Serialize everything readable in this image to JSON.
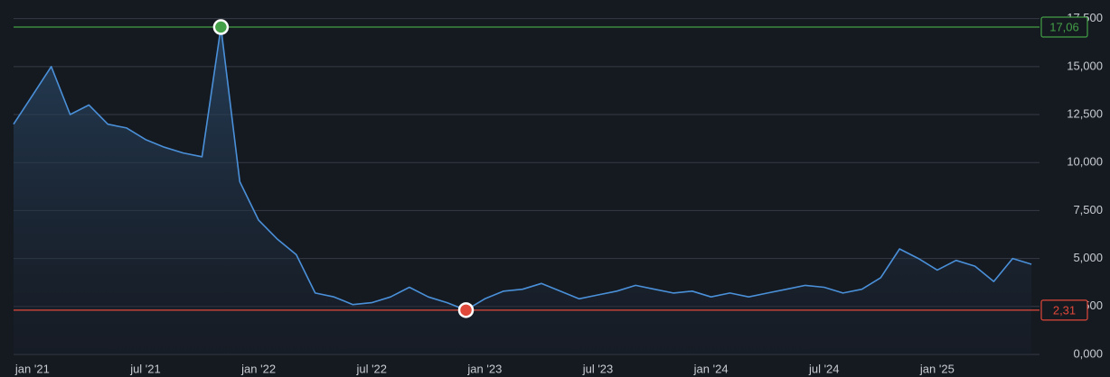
{
  "chart_data": {
    "type": "line",
    "x": [
      "2020-12",
      "2021-01",
      "2021-02",
      "2021-03",
      "2021-04",
      "2021-05",
      "2021-06",
      "2021-07",
      "2021-08",
      "2021-09",
      "2021-10",
      "2021-11",
      "2021-12",
      "2022-01",
      "2022-02",
      "2022-03",
      "2022-04",
      "2022-05",
      "2022-06",
      "2022-07",
      "2022-08",
      "2022-09",
      "2022-10",
      "2022-11",
      "2022-12",
      "2023-01",
      "2023-02",
      "2023-03",
      "2023-04",
      "2023-05",
      "2023-06",
      "2023-07",
      "2023-08",
      "2023-09",
      "2023-10",
      "2023-11",
      "2023-12",
      "2024-01",
      "2024-02",
      "2024-03",
      "2024-04",
      "2024-05",
      "2024-06",
      "2024-07",
      "2024-08",
      "2024-09",
      "2024-10",
      "2024-11",
      "2024-12",
      "2025-01",
      "2025-02",
      "2025-03",
      "2025-04",
      "2025-05",
      "2025-06"
    ],
    "series": [
      {
        "color": "#4a90d9",
        "values": [
          12.0,
          13.5,
          15.0,
          12.5,
          13.0,
          12.0,
          11.8,
          11.2,
          10.8,
          10.5,
          10.3,
          17.06,
          9.0,
          7.0,
          6.0,
          5.2,
          3.2,
          3.0,
          2.6,
          2.7,
          3.0,
          3.5,
          3.0,
          2.7,
          2.31,
          2.9,
          3.3,
          3.4,
          3.7,
          3.3,
          2.9,
          3.1,
          3.3,
          3.6,
          3.4,
          3.2,
          3.3,
          3.0,
          3.2,
          3.0,
          3.2,
          3.4,
          3.6,
          3.5,
          3.2,
          3.4,
          4.0,
          5.5,
          5.0,
          4.4,
          4.9,
          4.6,
          3.8,
          5.0,
          4.7
        ]
      }
    ],
    "xlim": [
      "2020-12",
      "2025-07"
    ],
    "xticks": [
      {
        "value": "2021-01",
        "label": "jan '21"
      },
      {
        "value": "2021-07",
        "label": "jul '21"
      },
      {
        "value": "2022-01",
        "label": "jan '22"
      },
      {
        "value": "2022-07",
        "label": "jul '22"
      },
      {
        "value": "2023-01",
        "label": "jan '23"
      },
      {
        "value": "2023-07",
        "label": "jul '23"
      },
      {
        "value": "2024-01",
        "label": "jan '24"
      },
      {
        "value": "2024-07",
        "label": "jul '24"
      },
      {
        "value": "2025-01",
        "label": "jan '25"
      }
    ],
    "ylim": [
      0,
      18
    ],
    "yticks": [
      {
        "value": 0,
        "label": "0,000"
      },
      {
        "value": 2.5,
        "label": "2,500"
      },
      {
        "value": 5,
        "label": "5,000"
      },
      {
        "value": 7.5,
        "label": "7,500"
      },
      {
        "value": 10,
        "label": "10,000"
      },
      {
        "value": 12.5,
        "label": "12,500"
      },
      {
        "value": 15,
        "label": "15,000"
      },
      {
        "value": 17.5,
        "label": "17,500"
      }
    ],
    "grid": true,
    "max": {
      "value": 17.06,
      "label": "17,06",
      "color": "#43a047"
    },
    "min": {
      "value": 2.31,
      "label": "2,31",
      "color": "#e0483a"
    }
  }
}
